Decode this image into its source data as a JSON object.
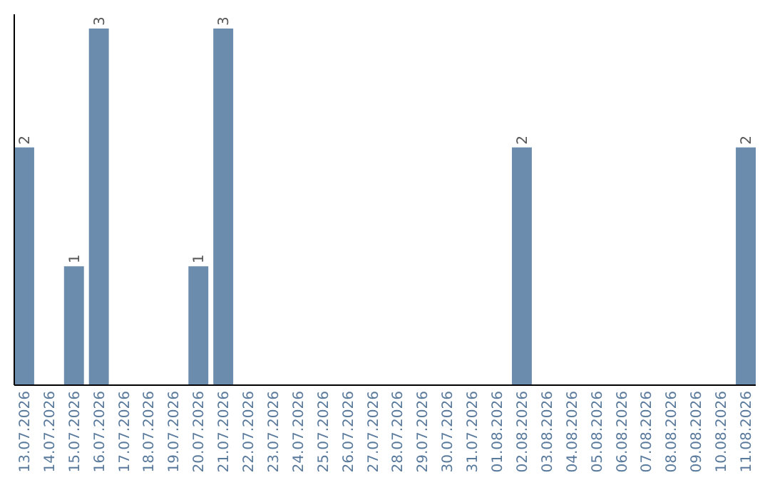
{
  "chart_data": {
    "type": "bar",
    "categories": [
      "13.07.2026",
      "14.07.2026",
      "15.07.2026",
      "16.07.2026",
      "17.07.2026",
      "18.07.2026",
      "19.07.2026",
      "20.07.2026",
      "21.07.2026",
      "22.07.2026",
      "23.07.2026",
      "24.07.2026",
      "25.07.2026",
      "26.07.2026",
      "27.07.2026",
      "28.07.2026",
      "29.07.2026",
      "30.07.2026",
      "31.07.2026",
      "01.08.2026",
      "02.08.2026",
      "03.08.2026",
      "04.08.2026",
      "05.08.2026",
      "06.08.2026",
      "07.08.2026",
      "08.08.2026",
      "09.08.2026",
      "10.08.2026",
      "11.08.2026"
    ],
    "values": [
      2,
      0,
      1,
      3,
      0,
      0,
      0,
      1,
      3,
      0,
      0,
      0,
      0,
      0,
      0,
      0,
      0,
      0,
      0,
      0,
      2,
      0,
      0,
      0,
      0,
      0,
      0,
      0,
      0,
      2
    ],
    "value_labels": [
      "2",
      null,
      "1",
      "3",
      null,
      null,
      null,
      "1",
      "3",
      null,
      null,
      null,
      null,
      null,
      null,
      null,
      null,
      null,
      null,
      null,
      "2",
      null,
      null,
      null,
      null,
      null,
      null,
      null,
      null,
      "2"
    ],
    "color": "#6b8cac"
  }
}
